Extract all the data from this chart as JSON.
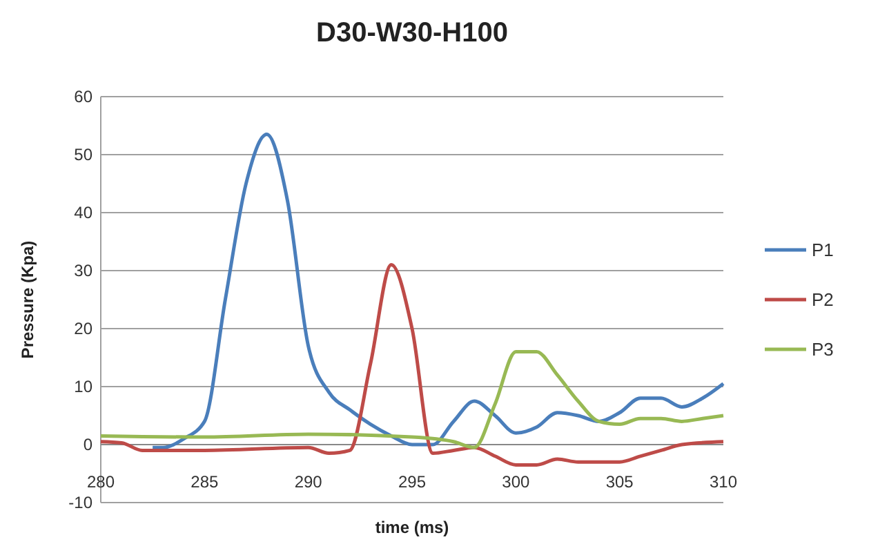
{
  "chart_data": {
    "type": "line",
    "title": "D30-W30-H100",
    "xlabel": "time (ms)",
    "ylabel": "Pressure (Kpa)",
    "xlim": [
      280,
      310
    ],
    "xticks": [
      280,
      285,
      290,
      295,
      300,
      305,
      310
    ],
    "ylim": [
      -10,
      60
    ],
    "yticks": [
      -10,
      0,
      10,
      20,
      30,
      40,
      50,
      60
    ],
    "grid": "y",
    "legend": "right",
    "marker": "none",
    "line_style": "solid",
    "series": [
      {
        "name": "P1",
        "color": "#4a7ebb",
        "x": [
          282.5,
          283,
          284,
          285,
          286,
          287,
          288,
          289,
          290,
          291,
          292,
          293,
          294,
          295,
          296,
          297,
          298,
          299,
          300,
          301,
          302,
          303,
          304,
          305,
          306,
          307,
          308,
          309,
          310
        ],
        "values": [
          -0.5,
          -0.5,
          1,
          4,
          25,
          45,
          53.5,
          42,
          17,
          9,
          6,
          3.5,
          1.5,
          0,
          0,
          4,
          7.5,
          5,
          2,
          3,
          5.5,
          5,
          4,
          5.5,
          8,
          8,
          6.5,
          8,
          10.5
        ]
      },
      {
        "name": "P2",
        "color": "#be4b48",
        "x": [
          280,
          281,
          282,
          285,
          290,
          291,
          292,
          293,
          294,
          295,
          296,
          297,
          298,
          299,
          300,
          301,
          302,
          303,
          304,
          305,
          306,
          307,
          308,
          310
        ],
        "values": [
          0.5,
          0.3,
          -1,
          -1,
          -0.5,
          -1.5,
          -1,
          14,
          31,
          20,
          -1.5,
          -1,
          -0.5,
          -2,
          -3.5,
          -3.5,
          -2.5,
          -3,
          -3,
          -3,
          -2,
          -1,
          0,
          0.5
        ]
      },
      {
        "name": "P3",
        "color": "#98b954",
        "x": [
          280,
          285,
          290,
          295,
          297,
          298,
          299,
          300,
          301,
          302,
          303,
          304,
          305,
          306,
          307,
          308,
          309,
          310
        ],
        "values": [
          1.5,
          1.3,
          1.8,
          1.3,
          0.5,
          -0.5,
          7,
          16,
          16,
          12,
          7.5,
          4,
          3.5,
          4.5,
          4.5,
          4,
          4.5,
          5
        ]
      }
    ]
  }
}
